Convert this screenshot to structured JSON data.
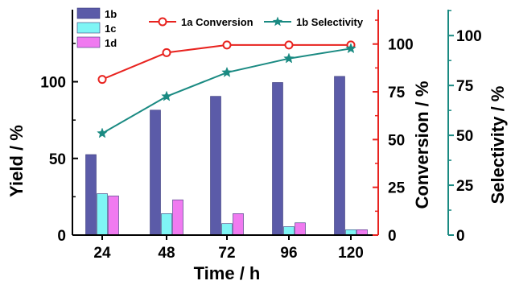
{
  "colors": {
    "bar_1b": "#5B5BA8",
    "bar_1c": "#7FF5F5",
    "bar_1d": "#F07AF0",
    "conversion": "#E8231F",
    "selectivity": "#1A8A82",
    "axis": "#000000"
  },
  "chart_data": {
    "type": "bar",
    "xlabel": "Time / h",
    "ylabel_left": "Yield / %",
    "ylabel_right1": "Conversion / %",
    "ylabel_right2": "Selectivity / %",
    "categories": [
      "24",
      "48",
      "72",
      "96",
      "120"
    ],
    "left_axis": {
      "ylim": [
        0,
        147
      ],
      "ticks": [
        "0",
        "50",
        "100"
      ]
    },
    "conversion_axis": {
      "ylim": [
        0,
        118
      ],
      "ticks": [
        "0",
        "25",
        "50",
        "75",
        "100"
      ]
    },
    "selectivity_axis": {
      "ylim": [
        0,
        113
      ],
      "ticks": [
        "0",
        "25",
        "50",
        "75",
        "100"
      ]
    },
    "series": [
      {
        "name": "1b",
        "type": "bar",
        "axis": "left",
        "color": "#5B5BA8",
        "values": [
          52.5,
          81.5,
          90.5,
          99.5,
          103.5
        ]
      },
      {
        "name": "1c",
        "type": "bar",
        "axis": "left",
        "color": "#7FF5F5",
        "values": [
          27,
          14,
          7.5,
          5.5,
          3.5
        ]
      },
      {
        "name": "1d",
        "type": "bar",
        "axis": "left",
        "color": "#F07AF0",
        "values": [
          25.5,
          23,
          14,
          8,
          3.5
        ]
      },
      {
        "name": "1a Conversion",
        "type": "line",
        "axis": "conversion",
        "marker": "circle",
        "color": "#E8231F",
        "values": [
          81.5,
          95.5,
          99.5,
          99.5,
          99.5
        ]
      },
      {
        "name": "1b Selectivity",
        "type": "line",
        "axis": "selectivity",
        "marker": "star",
        "color": "#1A8A82",
        "values": [
          51,
          69.5,
          81.5,
          88.5,
          93.5
        ]
      }
    ],
    "legend": {
      "position": "top",
      "entries": [
        "1b",
        "1c",
        "1d",
        "1a Conversion",
        "1b Selectivity"
      ]
    },
    "grid": false
  }
}
